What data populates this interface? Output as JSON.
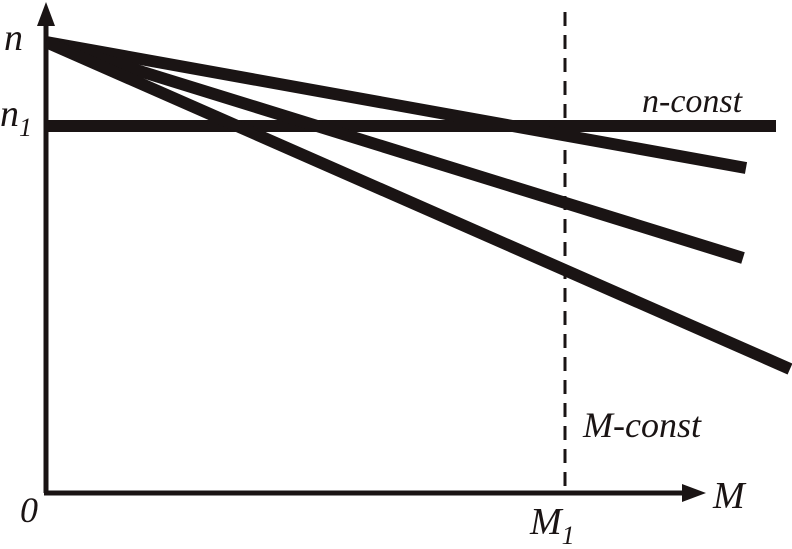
{
  "axes": {
    "y_label": "n",
    "x_label": "M",
    "origin_label": "0"
  },
  "levels": {
    "n1_base": "n",
    "n1_sub": "1",
    "m1_base": "M",
    "m1_sub": "1"
  },
  "annotations": {
    "n_const": "n-const",
    "m_const": "M-const"
  },
  "colors": {
    "ink": "#1a1414",
    "background": "#ffffff"
  }
}
